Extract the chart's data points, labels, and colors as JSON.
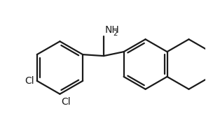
{
  "bg_color": "#ffffff",
  "line_color": "#1a1a1a",
  "line_width": 1.6,
  "font_size": 10,
  "figsize": [
    2.94,
    1.92
  ],
  "dpi": 100,
  "nh2_text": "NH",
  "nh2_sub": "2",
  "cl_text": "Cl"
}
